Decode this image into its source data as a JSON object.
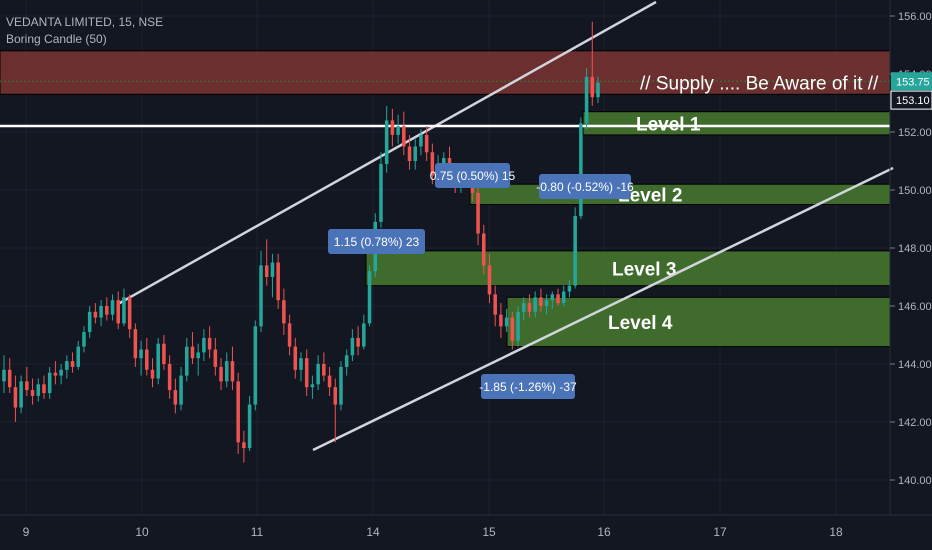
{
  "header": {
    "symbol_line": "VEDANTA LIMITED, 15, NSE",
    "indicator": "Boring Candle (50)"
  },
  "colors": {
    "background": "#131722",
    "up": "#26a69a",
    "down": "#ef5350",
    "zone_green": "#3f6b2c",
    "zone_red": "#7b3433",
    "text": "#b2b5be",
    "label_box": "#4a73b8"
  },
  "chart_data": {
    "type": "candlestick",
    "symbol": "VEDANTA LIMITED",
    "timeframe": "15",
    "exchange": "NSE",
    "x_ticks": [
      "9",
      "10",
      "11",
      "14",
      "15",
      "16",
      "17",
      "18"
    ],
    "y_ticks": [
      "140.00",
      "142.00",
      "144.00",
      "146.00",
      "148.00",
      "150.00",
      "152.00",
      "154.00",
      "156.00"
    ],
    "ylim": [
      139,
      157.5
    ],
    "price_labels": [
      {
        "value": 153.75,
        "text": "153.75",
        "color": "#26a69a"
      },
      {
        "value": 153.1,
        "text": "153.10",
        "color": "#ffffff"
      }
    ],
    "supply_zone": {
      "low": 153.3,
      "high": 154.8,
      "label": "// Supply .... Be Aware of it //"
    },
    "demand_levels": [
      {
        "label": "Level 1",
        "low": 151.9,
        "high": 152.7
      },
      {
        "label": "Level 2",
        "low": 149.5,
        "high": 150.2
      },
      {
        "label": "Level 3",
        "low": 146.7,
        "high": 147.9
      },
      {
        "label": "Level 4",
        "low": 144.6,
        "high": 146.3
      }
    ],
    "measurements": [
      {
        "text": "1.15 (0.78%) 23"
      },
      {
        "text": "0.75 (0.50%) 15"
      },
      {
        "text": "-0.80 (-0.52%) -16"
      },
      {
        "text": "-1.85 (-1.26%) -37"
      }
    ],
    "candles_ohlc": [
      [
        143.4,
        144.3,
        143.0,
        143.8
      ],
      [
        143.8,
        144.2,
        143.0,
        143.2
      ],
      [
        143.2,
        143.6,
        142.0,
        142.5
      ],
      [
        142.5,
        143.6,
        142.3,
        143.4
      ],
      [
        143.4,
        143.9,
        142.9,
        143.1
      ],
      [
        143.1,
        143.5,
        142.6,
        142.9
      ],
      [
        142.9,
        143.5,
        142.7,
        143.3
      ],
      [
        143.3,
        143.6,
        142.8,
        143.0
      ],
      [
        143.0,
        143.9,
        142.8,
        143.7
      ],
      [
        143.7,
        144.1,
        143.3,
        143.6
      ],
      [
        143.6,
        144.0,
        143.3,
        143.8
      ],
      [
        143.8,
        144.3,
        143.5,
        144.1
      ],
      [
        144.1,
        144.4,
        143.7,
        143.9
      ],
      [
        143.9,
        144.8,
        143.8,
        144.6
      ],
      [
        144.6,
        145.3,
        144.4,
        145.1
      ],
      [
        145.1,
        146.0,
        144.9,
        145.8
      ],
      [
        145.8,
        146.1,
        145.4,
        145.6
      ],
      [
        145.6,
        146.2,
        145.3,
        146.0
      ],
      [
        146.0,
        146.3,
        145.5,
        145.7
      ],
      [
        145.7,
        146.4,
        145.5,
        146.2
      ],
      [
        146.2,
        146.5,
        145.2,
        145.4
      ],
      [
        145.4,
        146.6,
        145.3,
        146.3
      ],
      [
        146.3,
        146.4,
        144.9,
        145.2
      ],
      [
        145.2,
        145.4,
        143.9,
        144.2
      ],
      [
        144.2,
        144.8,
        143.6,
        144.5
      ],
      [
        144.5,
        144.9,
        143.6,
        143.8
      ],
      [
        143.8,
        144.2,
        143.2,
        143.5
      ],
      [
        143.5,
        144.9,
        143.3,
        144.7
      ],
      [
        144.7,
        145.0,
        143.8,
        144.0
      ],
      [
        144.0,
        144.3,
        142.8,
        143.1
      ],
      [
        143.1,
        143.5,
        142.3,
        142.6
      ],
      [
        142.6,
        143.9,
        142.4,
        143.6
      ],
      [
        143.6,
        144.9,
        143.4,
        144.6
      ],
      [
        144.6,
        145.1,
        144.0,
        144.2
      ],
      [
        144.2,
        144.7,
        143.6,
        144.4
      ],
      [
        144.4,
        145.2,
        144.1,
        144.9
      ],
      [
        144.9,
        145.3,
        144.2,
        144.5
      ],
      [
        144.5,
        144.9,
        143.6,
        143.9
      ],
      [
        143.9,
        144.2,
        143.1,
        143.4
      ],
      [
        143.4,
        144.4,
        143.2,
        144.1
      ],
      [
        144.1,
        144.6,
        143.1,
        143.4
      ],
      [
        143.4,
        143.7,
        140.9,
        141.3
      ],
      [
        141.3,
        141.7,
        140.6,
        141.1
      ],
      [
        141.1,
        142.9,
        141.0,
        142.6
      ],
      [
        142.6,
        145.5,
        142.4,
        145.3
      ],
      [
        145.3,
        147.9,
        145.1,
        147.4
      ],
      [
        147.4,
        148.3,
        146.7,
        147.0
      ],
      [
        147.0,
        147.8,
        146.3,
        147.5
      ],
      [
        147.5,
        147.8,
        145.9,
        146.2
      ],
      [
        146.2,
        146.6,
        145.0,
        145.4
      ],
      [
        145.4,
        145.7,
        144.3,
        144.6
      ],
      [
        144.6,
        144.9,
        143.5,
        143.8
      ],
      [
        143.8,
        144.4,
        143.4,
        144.2
      ],
      [
        144.2,
        144.5,
        142.9,
        143.2
      ],
      [
        143.2,
        143.6,
        142.8,
        143.3
      ],
      [
        143.3,
        144.3,
        143.1,
        144.0
      ],
      [
        144.0,
        144.4,
        143.4,
        143.6
      ],
      [
        143.6,
        143.9,
        142.9,
        143.2
      ],
      [
        143.2,
        143.5,
        141.3,
        142.6
      ],
      [
        142.6,
        144.1,
        142.4,
        143.9
      ],
      [
        143.9,
        144.5,
        143.6,
        144.3
      ],
      [
        144.3,
        145.2,
        144.1,
        144.9
      ],
      [
        144.9,
        145.3,
        144.3,
        144.6
      ],
      [
        144.6,
        145.7,
        144.5,
        145.4
      ],
      [
        145.4,
        147.4,
        145.3,
        147.2
      ],
      [
        147.2,
        149.2,
        147.0,
        148.9
      ],
      [
        148.9,
        151.3,
        148.7,
        150.9
      ],
      [
        150.9,
        152.9,
        150.6,
        152.4
      ],
      [
        152.4,
        152.8,
        151.5,
        151.9
      ],
      [
        151.9,
        152.6,
        151.6,
        152.2
      ],
      [
        152.2,
        152.7,
        151.2,
        151.5
      ],
      [
        151.5,
        151.9,
        150.7,
        151.0
      ],
      [
        151.0,
        151.8,
        150.7,
        151.5
      ],
      [
        151.5,
        152.1,
        151.2,
        151.9
      ],
      [
        151.9,
        152.2,
        151.0,
        151.3
      ],
      [
        151.3,
        151.6,
        150.2,
        150.5
      ],
      [
        150.5,
        151.2,
        150.3,
        150.9
      ],
      [
        150.9,
        151.3,
        150.5,
        151.1
      ],
      [
        151.1,
        151.5,
        150.3,
        150.6
      ],
      [
        150.6,
        150.8,
        149.9,
        150.2
      ],
      [
        150.2,
        150.9,
        149.9,
        150.6
      ],
      [
        150.6,
        150.9,
        150.2,
        150.4
      ],
      [
        150.4,
        150.6,
        149.6,
        149.9
      ],
      [
        149.9,
        150.1,
        148.1,
        148.5
      ],
      [
        148.5,
        148.8,
        147.1,
        147.4
      ],
      [
        147.4,
        147.8,
        146.1,
        146.4
      ],
      [
        146.4,
        146.7,
        145.3,
        145.7
      ],
      [
        145.7,
        146.1,
        144.9,
        145.3
      ],
      [
        145.3,
        145.9,
        145.1,
        145.6
      ],
      [
        145.6,
        145.8,
        144.5,
        144.8
      ],
      [
        144.8,
        146.0,
        144.6,
        145.8
      ],
      [
        145.8,
        146.3,
        145.5,
        146.1
      ],
      [
        146.1,
        146.4,
        145.6,
        145.8
      ],
      [
        145.8,
        146.5,
        145.6,
        146.3
      ],
      [
        146.3,
        146.6,
        145.8,
        146.0
      ],
      [
        146.0,
        146.4,
        145.7,
        146.2
      ],
      [
        146.2,
        146.5,
        145.9,
        146.4
      ],
      [
        146.4,
        146.6,
        146.0,
        146.1
      ],
      [
        146.1,
        146.7,
        146.0,
        146.5
      ],
      [
        146.5,
        146.9,
        146.3,
        146.7
      ],
      [
        146.7,
        149.4,
        146.6,
        149.1
      ],
      [
        149.1,
        152.5,
        149.0,
        152.3
      ],
      [
        152.3,
        154.2,
        152.1,
        153.9
      ],
      [
        153.9,
        155.8,
        152.9,
        153.2
      ],
      [
        153.2,
        153.9,
        153.0,
        153.7
      ]
    ]
  }
}
